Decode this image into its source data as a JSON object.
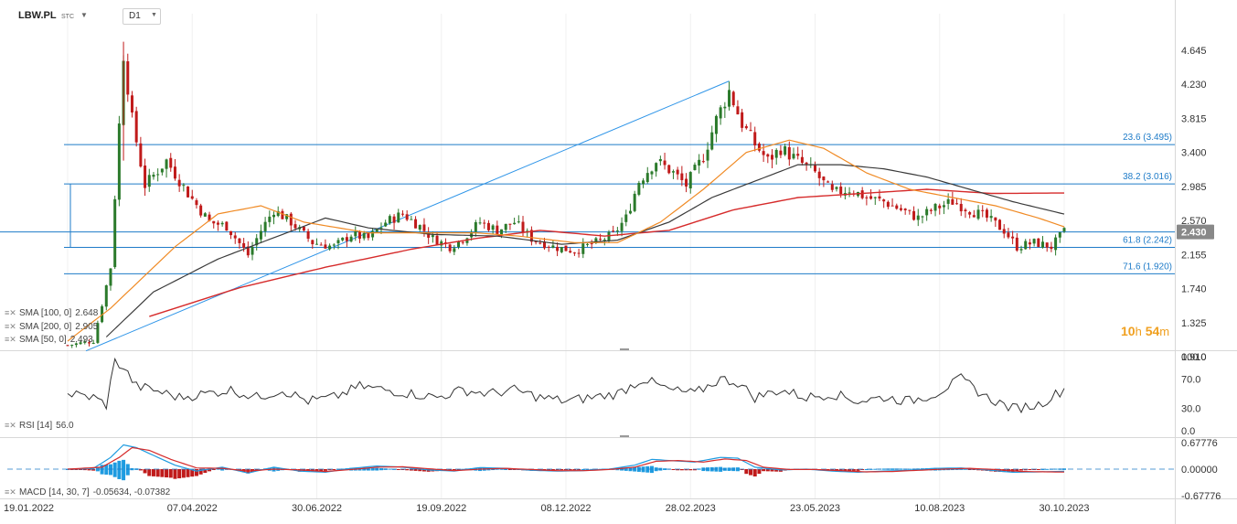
{
  "header": {
    "symbol": "LBW.PL",
    "symbol_type": "STC",
    "timeframe": "D1"
  },
  "timer": {
    "hours": "10",
    "h_unit": "h",
    "minutes": "54",
    "m_unit": "m"
  },
  "indicators": {
    "sma100": {
      "label": "SMA [100, 0]",
      "value": "2.648"
    },
    "sma200": {
      "label": "SMA [200, 0]",
      "value": "2.905"
    },
    "sma50": {
      "label": "SMA [50, 0]",
      "value": "2.493"
    },
    "rsi": {
      "label": "RSI [14]",
      "value": "56.0"
    },
    "macd": {
      "label": "MACD [14, 30, 7]",
      "value1": "-0.05634,",
      "value2": "-0.07382"
    }
  },
  "colors": {
    "up": "#2b7a2b",
    "down": "#c01a1a",
    "sma50": "#f08a24",
    "sma100": "#3a3a3a",
    "sma200": "#d62b2b",
    "fib": "#1e7bc8",
    "rsi": "#333333",
    "macd_line": "#1e9be0",
    "macd_signal": "#d62b2b",
    "last_price_bg": "#888888"
  },
  "chart_data": [
    {
      "type": "candlestick",
      "name": "LBW.PL",
      "x_ticks": [
        "19.01.2022",
        "07.04.2022",
        "30.06.2022",
        "19.09.2022",
        "08.12.2022",
        "28.02.2023",
        "23.05.2023",
        "10.08.2023",
        "30.10.2023"
      ],
      "y_ticks": [
        "4.645",
        "4.230",
        "3.815",
        "3.400",
        "2.985",
        "2.570",
        "2.155",
        "1.740",
        "1.325",
        "0.910"
      ],
      "ylim": [
        0.91,
        4.8
      ],
      "last_price": "2.430",
      "fibonacci": [
        {
          "level": "23.6",
          "price": "3.495",
          "label": "23.6 (3.495)"
        },
        {
          "level": "38.2",
          "price": "3.016",
          "label": "38.2 (3.016)"
        },
        {
          "level": "61.8",
          "price": "2.242",
          "label": "61.8 (2.242)"
        },
        {
          "level": "71.6",
          "price": "1.920",
          "label": "71.6 (1.920)"
        }
      ],
      "trendline": {
        "from": [
          0,
          0.98
        ],
        "to": [
          154,
          4.27
        ]
      },
      "anchors": [
        [
          0,
          1.05
        ],
        [
          6,
          1.1
        ],
        [
          10,
          2.0
        ],
        [
          13,
          4.6
        ],
        [
          15,
          3.8
        ],
        [
          18,
          3.0
        ],
        [
          23,
          3.3
        ],
        [
          28,
          2.9
        ],
        [
          33,
          2.55
        ],
        [
          37,
          2.5
        ],
        [
          42,
          2.15
        ],
        [
          45,
          2.45
        ],
        [
          48,
          2.7
        ],
        [
          52,
          2.55
        ],
        [
          57,
          2.3
        ],
        [
          62,
          2.25
        ],
        [
          66,
          2.4
        ],
        [
          70,
          2.35
        ],
        [
          74,
          2.55
        ],
        [
          78,
          2.65
        ],
        [
          82,
          2.5
        ],
        [
          85,
          2.35
        ],
        [
          89,
          2.25
        ],
        [
          92,
          2.35
        ],
        [
          96,
          2.55
        ],
        [
          100,
          2.45
        ],
        [
          104,
          2.55
        ],
        [
          108,
          2.35
        ],
        [
          113,
          2.25
        ],
        [
          118,
          2.2
        ],
        [
          123,
          2.3
        ],
        [
          127,
          2.4
        ],
        [
          130,
          2.6
        ],
        [
          133,
          3.05
        ],
        [
          137,
          3.3
        ],
        [
          141,
          3.15
        ],
        [
          144,
          3.0
        ],
        [
          148,
          3.35
        ],
        [
          151,
          3.8
        ],
        [
          154,
          4.15
        ],
        [
          157,
          3.75
        ],
        [
          160,
          3.5
        ],
        [
          163,
          3.3
        ],
        [
          166,
          3.45
        ],
        [
          170,
          3.3
        ],
        [
          174,
          3.15
        ],
        [
          178,
          2.9
        ],
        [
          182,
          2.95
        ],
        [
          186,
          2.85
        ],
        [
          190,
          2.8
        ],
        [
          194,
          2.7
        ],
        [
          198,
          2.6
        ],
        [
          202,
          2.72
        ],
        [
          206,
          2.8
        ],
        [
          210,
          2.7
        ],
        [
          214,
          2.6
        ],
        [
          218,
          2.45
        ],
        [
          221,
          2.25
        ],
        [
          225,
          2.3
        ],
        [
          229,
          2.25
        ],
        [
          232,
          2.43
        ]
      ],
      "sma50_points": [
        [
          0,
          1.1
        ],
        [
          10,
          1.5
        ],
        [
          25,
          2.25
        ],
        [
          35,
          2.65
        ],
        [
          45,
          2.75
        ],
        [
          55,
          2.55
        ],
        [
          70,
          2.42
        ],
        [
          85,
          2.42
        ],
        [
          95,
          2.42
        ],
        [
          105,
          2.38
        ],
        [
          118,
          2.3
        ],
        [
          128,
          2.3
        ],
        [
          138,
          2.55
        ],
        [
          148,
          2.95
        ],
        [
          158,
          3.4
        ],
        [
          168,
          3.55
        ],
        [
          176,
          3.45
        ],
        [
          186,
          3.15
        ],
        [
          196,
          2.95
        ],
        [
          206,
          2.85
        ],
        [
          216,
          2.75
        ],
        [
          226,
          2.6
        ],
        [
          232,
          2.493
        ]
      ],
      "sma100_points": [
        [
          9,
          1.15
        ],
        [
          20,
          1.7
        ],
        [
          35,
          2.1
        ],
        [
          50,
          2.4
        ],
        [
          60,
          2.6
        ],
        [
          70,
          2.48
        ],
        [
          85,
          2.4
        ],
        [
          100,
          2.38
        ],
        [
          115,
          2.28
        ],
        [
          128,
          2.33
        ],
        [
          140,
          2.55
        ],
        [
          150,
          2.85
        ],
        [
          160,
          3.05
        ],
        [
          170,
          3.25
        ],
        [
          180,
          3.25
        ],
        [
          190,
          3.2
        ],
        [
          200,
          3.1
        ],
        [
          210,
          2.95
        ],
        [
          220,
          2.8
        ],
        [
          232,
          2.648
        ]
      ],
      "sma200_points": [
        [
          19,
          1.4
        ],
        [
          40,
          1.75
        ],
        [
          60,
          2.0
        ],
        [
          80,
          2.22
        ],
        [
          95,
          2.35
        ],
        [
          110,
          2.45
        ],
        [
          125,
          2.38
        ],
        [
          140,
          2.45
        ],
        [
          155,
          2.7
        ],
        [
          170,
          2.85
        ],
        [
          185,
          2.9
        ],
        [
          200,
          2.95
        ],
        [
          215,
          2.9
        ],
        [
          232,
          2.905
        ]
      ]
    },
    {
      "type": "line",
      "name": "RSI",
      "y_ticks": [
        "100.0",
        "70.0",
        "30.0",
        "0.0"
      ],
      "ylim": [
        0,
        100
      ],
      "anchors": [
        [
          0,
          50
        ],
        [
          6,
          45
        ],
        [
          9,
          35
        ],
        [
          11,
          95
        ],
        [
          13,
          85
        ],
        [
          16,
          60
        ],
        [
          20,
          55
        ],
        [
          26,
          45
        ],
        [
          32,
          50
        ],
        [
          38,
          55
        ],
        [
          44,
          45
        ],
        [
          50,
          55
        ],
        [
          56,
          40
        ],
        [
          62,
          45
        ],
        [
          68,
          60
        ],
        [
          74,
          55
        ],
        [
          80,
          50
        ],
        [
          86,
          45
        ],
        [
          92,
          55
        ],
        [
          98,
          50
        ],
        [
          104,
          55
        ],
        [
          110,
          45
        ],
        [
          116,
          40
        ],
        [
          122,
          45
        ],
        [
          128,
          50
        ],
        [
          134,
          70
        ],
        [
          140,
          55
        ],
        [
          146,
          50
        ],
        [
          152,
          70
        ],
        [
          156,
          65
        ],
        [
          160,
          45
        ],
        [
          166,
          55
        ],
        [
          172,
          45
        ],
        [
          178,
          50
        ],
        [
          184,
          40
        ],
        [
          190,
          45
        ],
        [
          196,
          40
        ],
        [
          202,
          50
        ],
        [
          208,
          70
        ],
        [
          214,
          45
        ],
        [
          220,
          30
        ],
        [
          226,
          35
        ],
        [
          232,
          56
        ]
      ]
    },
    {
      "type": "macd",
      "name": "MACD",
      "y_ticks": [
        "0.67776",
        "0.00000",
        "-0.67776"
      ],
      "ylim": [
        -0.67776,
        0.67776
      ],
      "macd_anchors": [
        [
          0,
          0.0
        ],
        [
          6,
          0.02
        ],
        [
          10,
          0.3
        ],
        [
          13,
          0.62
        ],
        [
          16,
          0.55
        ],
        [
          20,
          0.35
        ],
        [
          25,
          0.1
        ],
        [
          30,
          -0.05
        ],
        [
          36,
          0.05
        ],
        [
          42,
          -0.1
        ],
        [
          48,
          0.05
        ],
        [
          54,
          -0.05
        ],
        [
          60,
          -0.08
        ],
        [
          66,
          0.02
        ],
        [
          72,
          0.08
        ],
        [
          78,
          0.05
        ],
        [
          84,
          -0.02
        ],
        [
          90,
          -0.05
        ],
        [
          96,
          0.04
        ],
        [
          102,
          0.02
        ],
        [
          108,
          -0.03
        ],
        [
          114,
          -0.05
        ],
        [
          120,
          -0.04
        ],
        [
          126,
          0.0
        ],
        [
          132,
          0.1
        ],
        [
          136,
          0.25
        ],
        [
          140,
          0.22
        ],
        [
          146,
          0.18
        ],
        [
          152,
          0.3
        ],
        [
          156,
          0.28
        ],
        [
          160,
          0.05
        ],
        [
          166,
          -0.02
        ],
        [
          172,
          0.0
        ],
        [
          178,
          -0.05
        ],
        [
          184,
          -0.08
        ],
        [
          190,
          -0.05
        ],
        [
          196,
          -0.03
        ],
        [
          202,
          0.02
        ],
        [
          208,
          0.03
        ],
        [
          214,
          -0.02
        ],
        [
          220,
          -0.08
        ],
        [
          226,
          -0.07
        ],
        [
          232,
          -0.05634
        ]
      ],
      "signal_anchors": [
        [
          0,
          0.0
        ],
        [
          8,
          0.05
        ],
        [
          12,
          0.3
        ],
        [
          15,
          0.55
        ],
        [
          19,
          0.48
        ],
        [
          24,
          0.25
        ],
        [
          30,
          0.03
        ],
        [
          36,
          0.02
        ],
        [
          42,
          -0.05
        ],
        [
          48,
          0.0
        ],
        [
          54,
          -0.02
        ],
        [
          60,
          -0.06
        ],
        [
          66,
          -0.01
        ],
        [
          72,
          0.05
        ],
        [
          78,
          0.06
        ],
        [
          84,
          0.01
        ],
        [
          90,
          -0.04
        ],
        [
          96,
          0.0
        ],
        [
          102,
          0.02
        ],
        [
          108,
          -0.01
        ],
        [
          114,
          -0.04
        ],
        [
          120,
          -0.04
        ],
        [
          126,
          -0.01
        ],
        [
          132,
          0.05
        ],
        [
          137,
          0.2
        ],
        [
          142,
          0.22
        ],
        [
          148,
          0.18
        ],
        [
          153,
          0.26
        ],
        [
          158,
          0.22
        ],
        [
          162,
          0.05
        ],
        [
          168,
          -0.01
        ],
        [
          174,
          -0.01
        ],
        [
          180,
          -0.04
        ],
        [
          186,
          -0.07
        ],
        [
          192,
          -0.06
        ],
        [
          198,
          -0.03
        ],
        [
          204,
          0.0
        ],
        [
          210,
          0.02
        ],
        [
          216,
          -0.01
        ],
        [
          222,
          -0.06
        ],
        [
          228,
          -0.07
        ],
        [
          232,
          -0.07382
        ]
      ]
    }
  ]
}
